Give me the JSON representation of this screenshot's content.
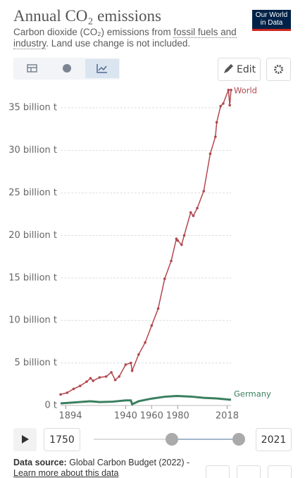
{
  "header": {
    "title": "Annual CO₂ emissions",
    "subtitle": [
      "Carbon dioxide (CO₂) emissions from ",
      "fossil fuels and industry",
      ". Land use change is not included."
    ],
    "logo": [
      "Our World",
      "in Data"
    ]
  },
  "controls": {
    "edit": "Edit",
    "start_year": "1750",
    "end_year": "2021"
  },
  "footer": {
    "source_label": "Data source:",
    "source": "Global Carbon Budget (2022) -",
    "learn_more": "Learn more about this data"
  },
  "chart_data": {
    "type": "line",
    "xlim": [
      1890,
      2021
    ],
    "xticks": [
      1894,
      1940,
      1960,
      1980,
      2018
    ],
    "ylim": [
      0,
      37
    ],
    "yticks": [
      {
        "value": 0,
        "label": "0 t"
      },
      {
        "value": 5,
        "label": "5 billion t"
      },
      {
        "value": 10,
        "label": "10 billion t"
      },
      {
        "value": 15,
        "label": "15 billion t"
      },
      {
        "value": 20,
        "label": "20 billion t"
      },
      {
        "value": 25,
        "label": "25 billion t"
      },
      {
        "value": 30,
        "label": "30 billion t"
      },
      {
        "value": 35,
        "label": "35 billion t"
      }
    ],
    "grid": true,
    "series": [
      {
        "name": "World",
        "color": "#b2474e",
        "markers": true,
        "x": [
          1890,
          1895,
          1900,
          1905,
          1910,
          1913,
          1915,
          1920,
          1925,
          1929,
          1932,
          1935,
          1940,
          1944,
          1945,
          1950,
          1955,
          1960,
          1965,
          1970,
          1975,
          1979,
          1980,
          1983,
          1985,
          1990,
          1992,
          1995,
          2000,
          2005,
          2009,
          2010,
          2013,
          2015,
          2019,
          2020,
          2021
        ],
        "values": [
          1.3,
          1.5,
          1.95,
          2.3,
          2.8,
          3.2,
          2.9,
          3.3,
          3.4,
          3.9,
          3.0,
          3.4,
          4.8,
          5.0,
          4.1,
          6.0,
          7.4,
          9.4,
          11.4,
          14.9,
          17.0,
          19.6,
          19.4,
          18.9,
          20.0,
          22.7,
          22.3,
          23.2,
          25.2,
          29.6,
          31.6,
          33.3,
          35.2,
          35.5,
          37.1,
          35.3,
          37.1
        ]
      },
      {
        "name": "Germany",
        "color": "#3a7f5f",
        "markers": false,
        "x": [
          1890,
          1900,
          1913,
          1920,
          1930,
          1940,
          1944,
          1945,
          1950,
          1960,
          1970,
          1979,
          1990,
          2000,
          2010,
          2021
        ],
        "values": [
          0.25,
          0.35,
          0.5,
          0.4,
          0.45,
          0.6,
          0.6,
          0.15,
          0.5,
          0.81,
          1.03,
          1.12,
          1.05,
          0.9,
          0.83,
          0.67
        ]
      }
    ]
  }
}
